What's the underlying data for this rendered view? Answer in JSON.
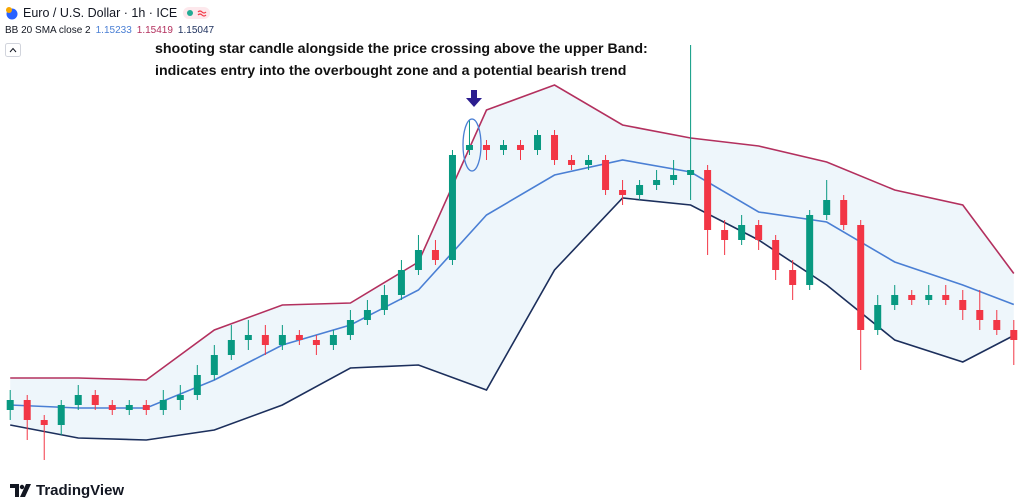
{
  "chart_data": {
    "type": "candlestick",
    "title": "Euro / U.S. Dollar · 1h · ICE",
    "indicator_label": "BB 20 SMA close 2",
    "annotation": [
      "shooting star candle alongside the price crossing above the upper Band:",
      "indicates entry into the overbought zone and a potential  bearish trend"
    ],
    "brand": "TradingView",
    "up_color": "#089981",
    "down_color": "#f23645",
    "band_fill": "#eef6fb",
    "xlim": [
      -0.6,
      59.6
    ],
    "ylim": [
      1.1424,
      1.1682
    ],
    "open": [
      1.146,
      1.1466,
      1.1454,
      1.1451,
      1.1463,
      1.1469,
      1.1463,
      1.146,
      1.1463,
      1.146,
      1.1466,
      1.1469,
      1.1481,
      1.1493,
      1.1502,
      1.1505,
      1.1499,
      1.1505,
      1.1502,
      1.1499,
      1.1505,
      1.1514,
      1.152,
      1.1529,
      1.1544,
      1.1556,
      1.155,
      1.1616,
      1.1619,
      1.1616,
      1.1619,
      1.1616,
      1.1625,
      1.161,
      1.1607,
      1.161,
      1.1592,
      1.1589,
      1.1595,
      1.1598,
      1.1601,
      1.1604,
      1.1568,
      1.1562,
      1.1571,
      1.1562,
      1.1544,
      1.1535,
      1.1577,
      1.1586,
      1.1571,
      1.1508,
      1.1523,
      1.1529,
      1.1526,
      1.1529,
      1.1526,
      1.152,
      1.1514,
      1.1508
    ],
    "high": [
      1.1472,
      1.1469,
      1.1457,
      1.1466,
      1.1475,
      1.1472,
      1.1466,
      1.1466,
      1.1466,
      1.1472,
      1.1475,
      1.1487,
      1.1499,
      1.1511,
      1.1514,
      1.1511,
      1.1511,
      1.1508,
      1.1505,
      1.1508,
      1.152,
      1.1526,
      1.1535,
      1.155,
      1.1565,
      1.1562,
      1.1616,
      1.1634,
      1.1622,
      1.1622,
      1.1622,
      1.1628,
      1.1628,
      1.1613,
      1.1613,
      1.1613,
      1.1598,
      1.1598,
      1.1604,
      1.161,
      1.1679,
      1.1607,
      1.1574,
      1.1577,
      1.1574,
      1.1565,
      1.155,
      1.158,
      1.1598,
      1.1589,
      1.1574,
      1.1529,
      1.1535,
      1.1532,
      1.1535,
      1.1535,
      1.1532,
      1.1532,
      1.152,
      1.1514
    ],
    "low": [
      1.1454,
      1.1442,
      1.143,
      1.1445,
      1.146,
      1.146,
      1.1457,
      1.1457,
      1.1457,
      1.1457,
      1.146,
      1.1466,
      1.1478,
      1.149,
      1.1496,
      1.1493,
      1.1496,
      1.1499,
      1.1493,
      1.1496,
      1.1502,
      1.1511,
      1.1517,
      1.1526,
      1.1541,
      1.1547,
      1.1547,
      1.1613,
      1.161,
      1.1613,
      1.161,
      1.1613,
      1.1607,
      1.1604,
      1.1604,
      1.1589,
      1.1583,
      1.1586,
      1.1592,
      1.1595,
      1.1586,
      1.1553,
      1.1553,
      1.1559,
      1.1556,
      1.1538,
      1.1526,
      1.1532,
      1.1574,
      1.1568,
      1.1484,
      1.1505,
      1.152,
      1.1523,
      1.1523,
      1.1523,
      1.1514,
      1.1508,
      1.1505,
      1.1487
    ],
    "close": [
      1.1466,
      1.1454,
      1.1451,
      1.1463,
      1.1469,
      1.1463,
      1.146,
      1.1463,
      1.146,
      1.1466,
      1.1469,
      1.1481,
      1.1493,
      1.1502,
      1.1505,
      1.1499,
      1.1505,
      1.1502,
      1.1499,
      1.1505,
      1.1514,
      1.152,
      1.1529,
      1.1544,
      1.1556,
      1.155,
      1.1613,
      1.1619,
      1.1616,
      1.1619,
      1.1616,
      1.1625,
      1.161,
      1.1607,
      1.161,
      1.1592,
      1.1589,
      1.1595,
      1.1598,
      1.1601,
      1.1604,
      1.1568,
      1.1562,
      1.1571,
      1.1562,
      1.1544,
      1.1535,
      1.1577,
      1.1586,
      1.1571,
      1.1508,
      1.1523,
      1.1529,
      1.1526,
      1.1529,
      1.1526,
      1.152,
      1.1514,
      1.1508,
      1.1502
    ],
    "bands": [
      {
        "color": "#4a7fd4",
        "x": [
          0,
          4,
          8,
          12,
          16,
          20,
          24,
          28,
          32,
          36,
          40,
          44,
          48,
          52,
          56,
          59
        ],
        "values": [
          1.1463,
          1.14612,
          1.14612,
          1.1478,
          1.1499,
          1.1511,
          1.1532,
          1.1577,
          1.1601,
          1.161,
          1.16028,
          1.15788,
          1.15728,
          1.15488,
          1.1535,
          1.15233
        ]
      },
      {
        "color": "#b3305e",
        "x": [
          0,
          4,
          8,
          12,
          16,
          20,
          24,
          28,
          32,
          36,
          40,
          44,
          48,
          52,
          56,
          59
        ],
        "values": [
          1.14792,
          1.14792,
          1.1478,
          1.1508,
          1.1523,
          1.15242,
          1.15488,
          1.164,
          1.1655,
          1.1631,
          1.16232,
          1.16184,
          1.16088,
          1.1592,
          1.1583,
          1.15419
        ]
      },
      {
        "color": "#1c2f5c",
        "x": [
          0,
          4,
          8,
          12,
          16,
          20,
          24,
          28,
          32,
          36,
          40,
          44,
          48,
          52,
          56,
          59
        ],
        "values": [
          1.1451,
          1.14432,
          1.1442,
          1.1448,
          1.1463,
          1.14852,
          1.1487,
          1.1472,
          1.1544,
          1.15872,
          1.1583,
          1.1562,
          1.1535,
          1.1502,
          1.14888,
          1.15047
        ]
      }
    ]
  }
}
